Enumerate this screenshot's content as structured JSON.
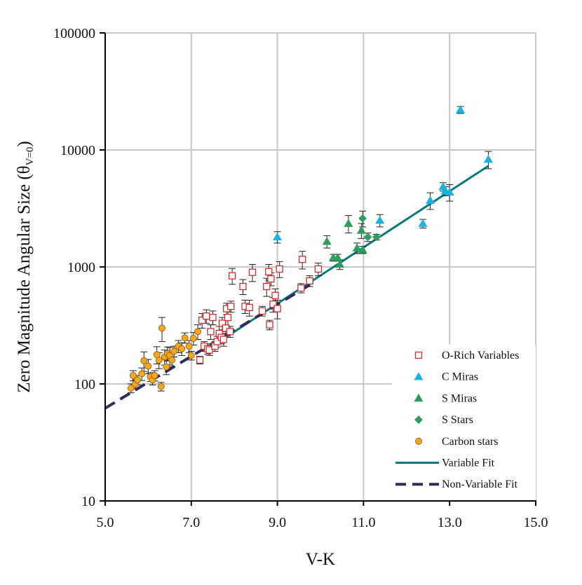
{
  "chart_data": {
    "type": "scatter",
    "xlabel": "V-K",
    "ylabel": "Zero Magnitude Angular Size (θ",
    "ylabel_sub": "V=0",
    "ylabel_close": ")",
    "xlim": [
      5.0,
      15.0
    ],
    "ylim": [
      10,
      100000
    ],
    "yscale": "log",
    "grid": true,
    "legend_position": "lower-right",
    "x_ticks": [
      5.0,
      7.0,
      9.0,
      11.0,
      13.0,
      15.0
    ],
    "x_tick_labels": [
      "5.0",
      "7.0",
      "9.0",
      "11.0",
      "13.0",
      "15.0"
    ],
    "y_ticks": [
      10,
      100,
      1000,
      10000,
      100000
    ],
    "y_tick_labels": [
      "10",
      "100",
      "1000",
      "10000",
      "100000"
    ],
    "series": [
      {
        "name": "O-Rich Variables",
        "marker": "open-square",
        "color": "#d32f2f",
        "points": [
          [
            7.2,
            160,
            12
          ],
          [
            7.25,
            350,
            50
          ],
          [
            7.3,
            210,
            20
          ],
          [
            7.35,
            380,
            50
          ],
          [
            7.38,
            200,
            20
          ],
          [
            7.42,
            195,
            20
          ],
          [
            7.45,
            280,
            40
          ],
          [
            7.5,
            370,
            50
          ],
          [
            7.55,
            210,
            20
          ],
          [
            7.6,
            230,
            25
          ],
          [
            7.65,
            270,
            40
          ],
          [
            7.7,
            250,
            30
          ],
          [
            7.72,
            330,
            40
          ],
          [
            7.75,
            240,
            30
          ],
          [
            7.8,
            300,
            50
          ],
          [
            7.82,
            440,
            50
          ],
          [
            7.85,
            370,
            60
          ],
          [
            7.9,
            280,
            30
          ],
          [
            7.92,
            460,
            50
          ],
          [
            7.95,
            840,
            130
          ],
          [
            8.2,
            680,
            100
          ],
          [
            8.25,
            460,
            60
          ],
          [
            8.35,
            450,
            70
          ],
          [
            8.42,
            900,
            150
          ],
          [
            8.65,
            420,
            40
          ],
          [
            8.75,
            680,
            120
          ],
          [
            8.8,
            910,
            140
          ],
          [
            8.82,
            320,
            30
          ],
          [
            8.85,
            790,
            100
          ],
          [
            8.9,
            480,
            70
          ],
          [
            8.95,
            570,
            80
          ],
          [
            9.0,
            440,
            80
          ],
          [
            9.05,
            960,
            150
          ],
          [
            9.55,
            660,
            60
          ],
          [
            9.58,
            1160,
            200
          ],
          [
            9.75,
            760,
            80
          ],
          [
            9.95,
            960,
            120
          ]
        ]
      },
      {
        "name": "C Miras",
        "marker": "triangle",
        "color": "#1ab3e0",
        "points": [
          [
            9.0,
            1800,
            200
          ],
          [
            11.38,
            2500,
            300
          ],
          [
            12.38,
            2350,
            200
          ],
          [
            12.55,
            3700,
            600
          ],
          [
            12.85,
            4850,
            400
          ],
          [
            12.9,
            4450,
            400
          ],
          [
            13.0,
            4350,
            700
          ],
          [
            13.25,
            22000,
            1500
          ],
          [
            13.9,
            8300,
            1400
          ]
        ]
      },
      {
        "name": "S Miras",
        "marker": "triangle",
        "color": "#2e9e5e",
        "points": [
          [
            10.15,
            1650,
            200
          ],
          [
            10.3,
            1200,
            80
          ],
          [
            10.4,
            1200,
            80
          ],
          [
            10.45,
            1050,
            100
          ],
          [
            10.65,
            2350,
            400
          ],
          [
            10.85,
            1450,
            150
          ],
          [
            10.95,
            2050,
            300
          ],
          [
            10.98,
            1400,
            100
          ]
        ]
      },
      {
        "name": "S Stars",
        "marker": "diamond",
        "color": "#2e9e5e",
        "points": [
          [
            10.98,
            2600,
            400
          ],
          [
            11.1,
            1800,
            150
          ],
          [
            11.3,
            1800,
            100
          ]
        ]
      },
      {
        "name": "Carbon stars",
        "marker": "circle",
        "color": "#f5a623",
        "points": [
          [
            5.6,
            92,
            8
          ],
          [
            5.65,
            118,
            12
          ],
          [
            5.7,
            100,
            8
          ],
          [
            5.75,
            108,
            10
          ],
          [
            5.85,
            122,
            15
          ],
          [
            5.9,
            158,
            30
          ],
          [
            6.0,
            142,
            20
          ],
          [
            6.05,
            115,
            10
          ],
          [
            6.1,
            108,
            10
          ],
          [
            6.15,
            118,
            12
          ],
          [
            6.2,
            178,
            30
          ],
          [
            6.25,
            160,
            25
          ],
          [
            6.3,
            95,
            8
          ],
          [
            6.32,
            300,
            70
          ],
          [
            6.38,
            170,
            25
          ],
          [
            6.42,
            140,
            20
          ],
          [
            6.45,
            182,
            25
          ],
          [
            6.5,
            175,
            30
          ],
          [
            6.55,
            160,
            20
          ],
          [
            6.6,
            190,
            20
          ],
          [
            6.7,
            210,
            25
          ],
          [
            6.78,
            200,
            25
          ],
          [
            6.85,
            248,
            25
          ],
          [
            6.95,
            210,
            25
          ],
          [
            7.0,
            175,
            15
          ],
          [
            7.05,
            245,
            30
          ],
          [
            7.15,
            280,
            40
          ]
        ]
      }
    ],
    "fits": [
      {
        "name": "Variable Fit",
        "style": "solid",
        "color": "#0b7a7f",
        "x": [
          7.35,
          13.9
        ],
        "y": [
          195,
          7300
        ]
      },
      {
        "name": "Non-Variable Fit",
        "style": "dashed",
        "color": "#2e2d5e",
        "x": [
          5.0,
          9.8
        ],
        "y": [
          62,
          720
        ]
      }
    ],
    "legend": [
      {
        "label": "O-Rich Variables",
        "marker": "open-square",
        "color": "#d32f2f"
      },
      {
        "label": "C Miras",
        "marker": "triangle",
        "color": "#1ab3e0"
      },
      {
        "label": "S Miras",
        "marker": "triangle",
        "color": "#2e9e5e"
      },
      {
        "label": "S Stars",
        "marker": "diamond",
        "color": "#2e9e5e"
      },
      {
        "label": "Carbon stars",
        "marker": "circle",
        "color": "#f5a623"
      },
      {
        "label": "Variable Fit",
        "marker": "line-solid",
        "color": "#0b7a7f"
      },
      {
        "label": "Non-Variable Fit",
        "marker": "line-dashed",
        "color": "#2e2d5e"
      }
    ]
  }
}
